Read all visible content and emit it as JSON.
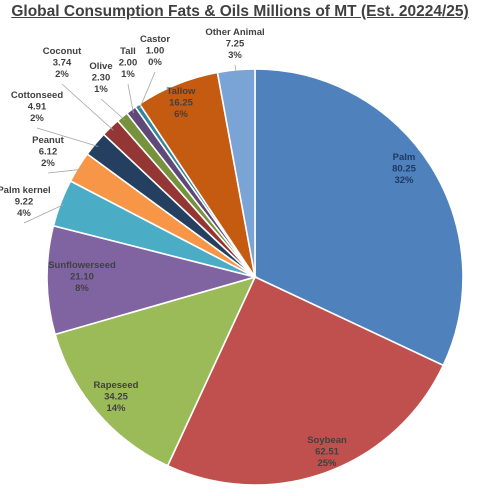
{
  "chart_data": {
    "type": "pie",
    "title": "Global Consumption  Fats & Oils Millions of MT (Est. 20224/25)",
    "slices": [
      {
        "label": "Palm",
        "value": 80.25,
        "value_text": "80.25",
        "pct_text": "32%",
        "color": "#4f81bd",
        "text_color": "#1f3864"
      },
      {
        "label": "Soybean",
        "value": 62.51,
        "value_text": "62.51",
        "pct_text": "25%",
        "color": "#c0504d",
        "text_color": "#404040"
      },
      {
        "label": "Rapeseed",
        "value": 34.25,
        "value_text": "34.25",
        "pct_text": "14%",
        "color": "#9bbb59",
        "text_color": "#404040"
      },
      {
        "label": "Sunflowerseed",
        "value": 21.1,
        "value_text": "21.10",
        "pct_text": "8%",
        "color": "#8064a2",
        "text_color": "#404040"
      },
      {
        "label": "Palm kernel",
        "value": 9.22,
        "value_text": "9.22",
        "pct_text": "4%",
        "color": "#4bacc6",
        "text_color": "#404040"
      },
      {
        "label": "Peanut",
        "value": 6.12,
        "value_text": "6.12",
        "pct_text": "2%",
        "color": "#f79646",
        "text_color": "#404040"
      },
      {
        "label": "Cottonseed",
        "value": 4.91,
        "value_text": "4.91",
        "pct_text": "2%",
        "color": "#243f60",
        "text_color": "#404040"
      },
      {
        "label": "Coconut",
        "value": 3.74,
        "value_text": "3.74",
        "pct_text": "2%",
        "color": "#943634",
        "text_color": "#404040"
      },
      {
        "label": "Olive",
        "value": 2.3,
        "value_text": "2.30",
        "pct_text": "1%",
        "color": "#76923c",
        "text_color": "#404040"
      },
      {
        "label": "Tall",
        "value": 2.0,
        "value_text": "2.00",
        "pct_text": "1%",
        "color": "#5f497a",
        "text_color": "#404040"
      },
      {
        "label": "Castor",
        "value": 1.0,
        "value_text": "1.00",
        "pct_text": "0%",
        "color": "#31859c",
        "text_color": "#404040"
      },
      {
        "label": "Tallow",
        "value": 16.25,
        "value_text": "16.25",
        "pct_text": "6%",
        "color": "#c55a11",
        "text_color": "#404040"
      },
      {
        "label": "Other Animal",
        "value": 7.25,
        "value_text": "7.25",
        "pct_text": "3%",
        "color": "#7aa3d6",
        "text_color": "#404040"
      }
    ]
  }
}
